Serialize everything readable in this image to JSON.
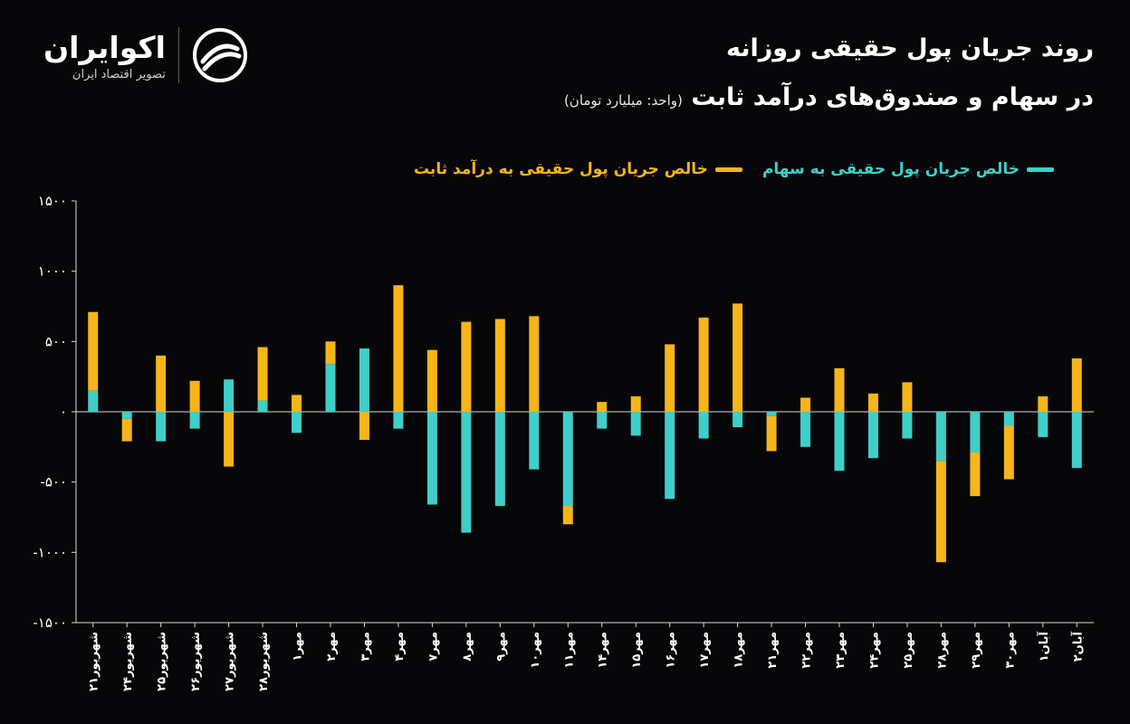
{
  "header": {
    "title_line1": "روند جریان پول حقیقی روزانه",
    "title_line2": "در سهام و صندوق‌های درآمد ثابت",
    "unit": "(واحد: میلیارد تومان)"
  },
  "brand": {
    "name": "اکوایران",
    "tagline": "تصویر اقتصاد ایران"
  },
  "colors": {
    "stocks": "#3fcfc8",
    "fixed_income": "#f7b519",
    "background": "#07070a",
    "axis": "#d9d9d9"
  },
  "chart_data": {
    "type": "bar",
    "stacked": true,
    "ylim": [
      -1500,
      1500
    ],
    "yticks": [
      1500,
      1000,
      500,
      0,
      -500,
      -1000,
      -1500
    ],
    "ytick_labels": [
      "۱۵۰۰",
      "۱۰۰۰",
      "۵۰۰",
      "۰",
      "-۵۰۰",
      "-۱۰۰۰",
      "-۱۵۰۰"
    ],
    "categories": [
      "شهریور۲۱",
      "شهریور۲۴",
      "شهریور۲۵",
      "شهریور۲۶",
      "شهریور۲۷",
      "شهریور۲۸",
      "مهر۱",
      "مهر۲",
      "مهر۳",
      "مهر۴",
      "مهر۷",
      "مهر۸",
      "مهر۹",
      "مهر۱۰",
      "مهر۱۱",
      "مهر۱۴",
      "مهر۱۵",
      "مهر۱۶",
      "مهر۱۷",
      "مهر۱۸",
      "مهر۲۱",
      "مهر۲۲",
      "مهر۲۳",
      "مهر۲۴",
      "مهر۲۵",
      "مهر۲۸",
      "مهر۲۹",
      "مهر۳۰",
      "آبان۱",
      "آبان۲"
    ],
    "series": [
      {
        "name": "خالص جریان پول حقیقی به سهام",
        "values": [
          150,
          -50,
          -210,
          -120,
          230,
          80,
          -150,
          340,
          450,
          -120,
          -660,
          -860,
          -670,
          -410,
          -670,
          -120,
          -170,
          -620,
          -190,
          -110,
          -30,
          -250,
          -420,
          -330,
          -190,
          -350,
          -290,
          -100,
          -180,
          -400
        ]
      },
      {
        "name": "خالص جریان پول حقیقی به درآمد ثابت",
        "values": [
          560,
          -160,
          400,
          220,
          -390,
          380,
          120,
          160,
          -200,
          900,
          440,
          640,
          660,
          680,
          -130,
          70,
          110,
          480,
          670,
          770,
          -250,
          100,
          310,
          130,
          210,
          -720,
          -310,
          -380,
          110,
          380
        ]
      }
    ],
    "legend": "top"
  }
}
